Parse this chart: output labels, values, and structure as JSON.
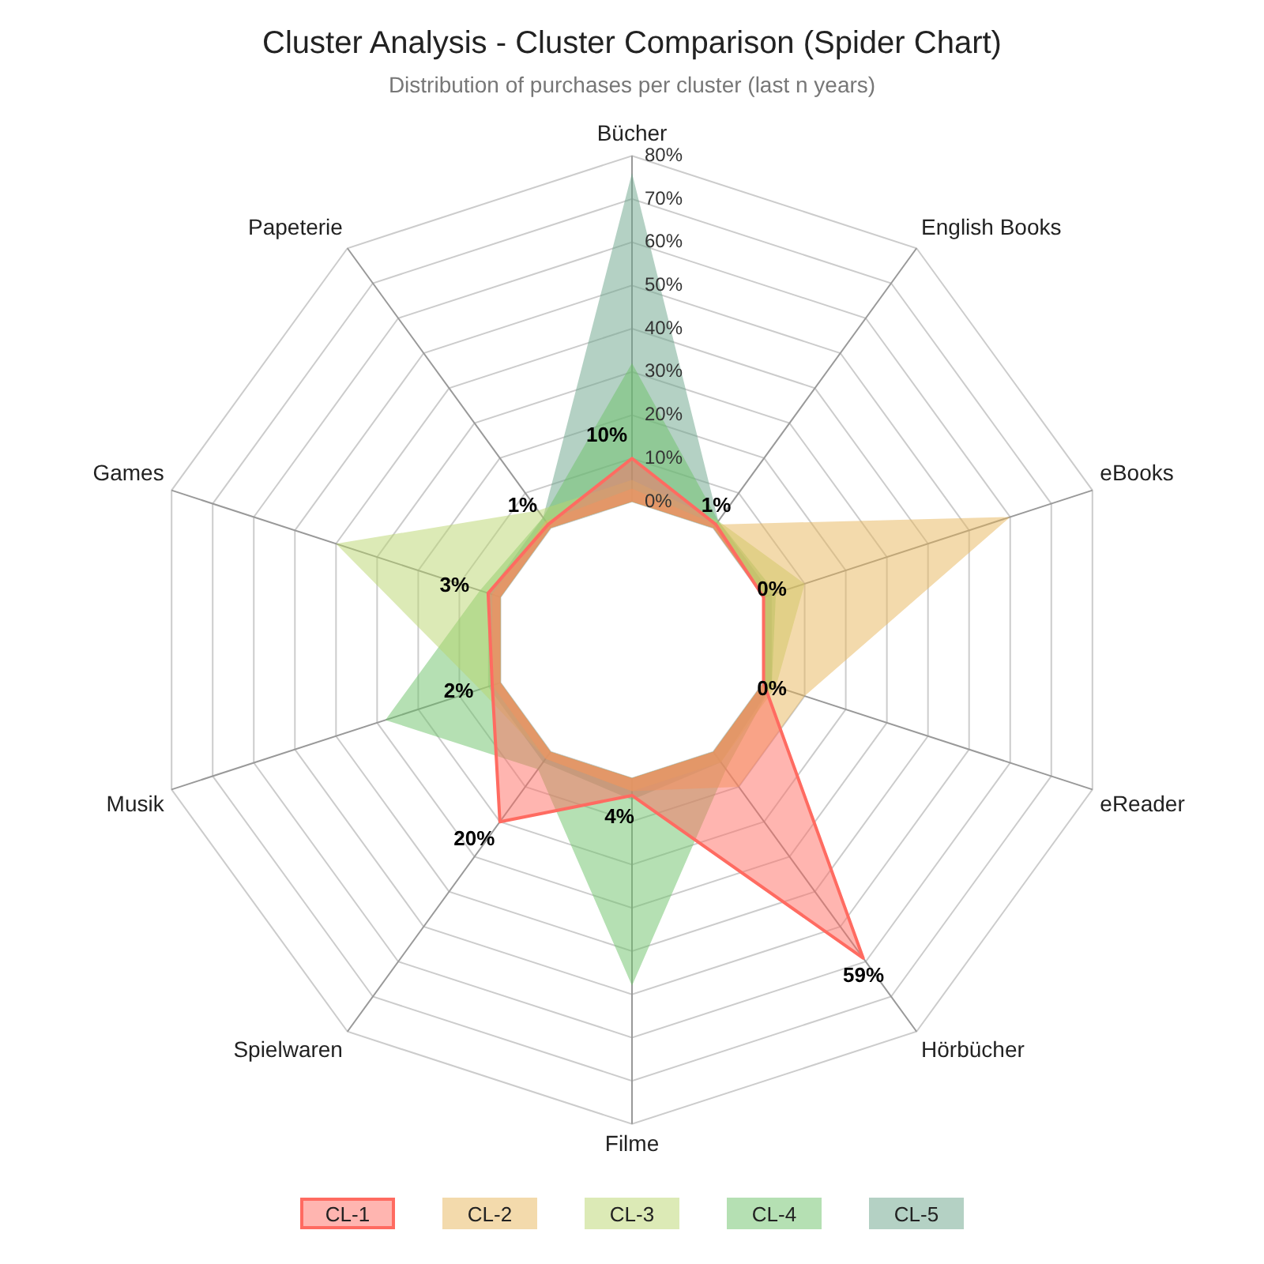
{
  "chart_data": {
    "type": "radar",
    "title": "Cluster Analysis - Cluster Comparison (Spider Chart)",
    "subtitle": "Distribution of purchases per cluster (last n years)",
    "categories": [
      "Bücher",
      "English Books",
      "eBooks",
      "eReader",
      "Hörbücher",
      "Filme",
      "Spielwaren",
      "Musik",
      "Games",
      "Papeterie"
    ],
    "ylim": [
      -32,
      80
    ],
    "yticks": [
      {
        "value": 0,
        "label": "0%"
      },
      {
        "value": 10,
        "label": "10%"
      },
      {
        "value": 20,
        "label": "20%"
      },
      {
        "value": 30,
        "label": "30%"
      },
      {
        "value": 40,
        "label": "40%"
      },
      {
        "value": 50,
        "label": "50%"
      },
      {
        "value": 60,
        "label": "60%"
      },
      {
        "value": 70,
        "label": "70%"
      },
      {
        "value": 80,
        "label": "80%"
      }
    ],
    "grid": true,
    "legend": "bottom",
    "series": [
      {
        "name": "CL-1",
        "color": "#ff6b61",
        "line_style": "solid",
        "values": [
          10,
          1,
          0,
          0,
          59,
          4,
          20,
          2,
          3,
          1
        ],
        "value_labels": [
          "10%",
          "1%",
          "0%",
          "0%",
          "59%",
          "4%",
          "20%",
          "2%",
          "3%",
          "1%"
        ]
      },
      {
        "name": "CL-2",
        "color": "#e8b65a",
        "values": [
          3,
          1,
          60,
          10,
          10,
          3,
          2,
          2,
          2,
          2
        ]
      },
      {
        "name": "CL-3",
        "color": "#b9d66e",
        "values": [
          5,
          2,
          10,
          3,
          3,
          3,
          2,
          5,
          40,
          5
        ]
      },
      {
        "name": "CL-4",
        "color": "#6cc267",
        "values": [
          32,
          2,
          3,
          2,
          5,
          48,
          5,
          28,
          5,
          3
        ]
      },
      {
        "name": "CL-5",
        "color": "#6aa38a",
        "values": [
          76,
          2,
          2,
          2,
          3,
          5,
          3,
          3,
          3,
          3
        ]
      }
    ]
  }
}
